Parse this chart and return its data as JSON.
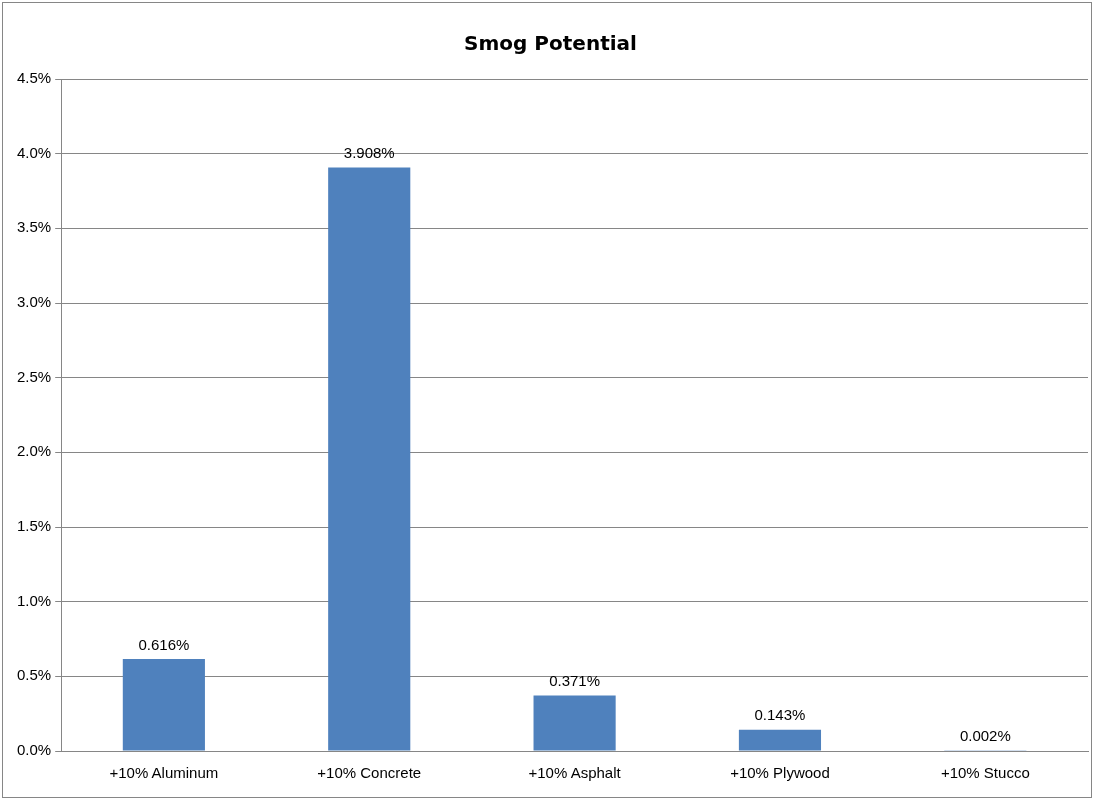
{
  "chart_data": {
    "type": "bar",
    "title": "Smog Potential",
    "categories": [
      "+10% Aluminum",
      "+10% Concrete",
      "+10% Asphalt",
      "+10% Plywood",
      "+10% Stucco"
    ],
    "values": [
      0.616,
      3.908,
      0.371,
      0.143,
      0.002
    ],
    "value_labels": [
      "0.616%",
      "3.908%",
      "0.371%",
      "0.143%",
      "0.002%"
    ],
    "color": "#4f81bd",
    "ylim": [
      0,
      4.5
    ],
    "yticks": [
      {
        "value": 0,
        "label": "0.0%"
      },
      {
        "value": 0.5,
        "label": "0.5%"
      },
      {
        "value": 1,
        "label": "1.0%"
      },
      {
        "value": 1.5,
        "label": "1.5%"
      },
      {
        "value": 2,
        "label": "2.0%"
      },
      {
        "value": 2.5,
        "label": "2.5%"
      },
      {
        "value": 3,
        "label": "3.0%"
      },
      {
        "value": 3.5,
        "label": "3.5%"
      },
      {
        "value": 4,
        "label": "4.0%"
      },
      {
        "value": 4.5,
        "label": "4.5%"
      }
    ],
    "grid": "y",
    "legend": false
  }
}
